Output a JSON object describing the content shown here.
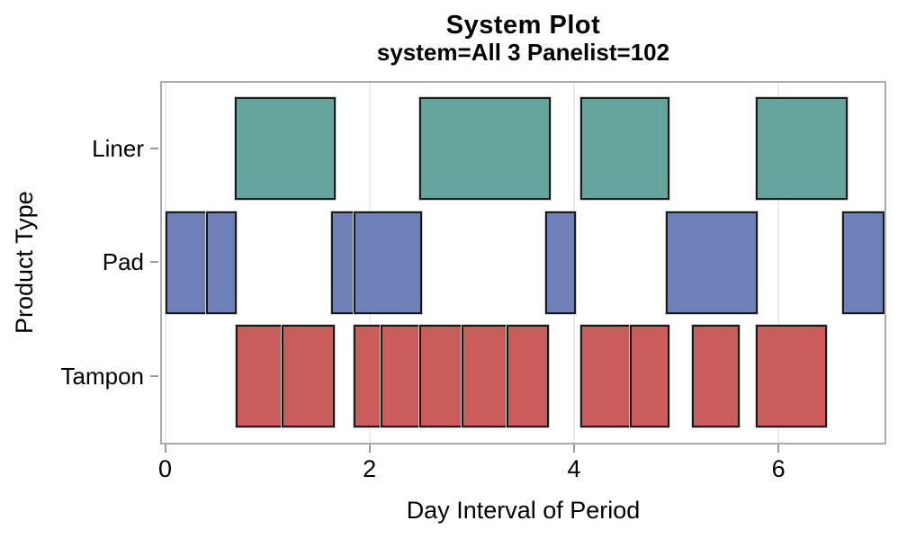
{
  "chart_data": {
    "type": "bar",
    "subtype": "horizontal-interval-gantt",
    "title": "System Plot",
    "subtitle": "system=All 3 Panelist=102",
    "xlabel": "Day Interval of Period",
    "ylabel": "Product Type",
    "categories": [
      "Liner",
      "Pad",
      "Tampon"
    ],
    "x_ticks": [
      0,
      2,
      4,
      6
    ],
    "xlim": [
      -0.05,
      7.06
    ],
    "grid": "vertical-light-at-ticks",
    "legend": "none",
    "series": [
      {
        "name": "Liner",
        "color": "#66A49E",
        "intervals": [
          [
            0.7,
            1.65
          ],
          [
            2.5,
            3.75
          ],
          [
            4.08,
            4.92
          ],
          [
            5.8,
            6.66
          ]
        ]
      },
      {
        "name": "Pad",
        "color": "#6F80B8",
        "intervals": [
          [
            0.02,
            0.42
          ],
          [
            0.42,
            0.68
          ],
          [
            1.64,
            1.86
          ],
          [
            1.86,
            2.5
          ],
          [
            3.74,
            4.0
          ],
          [
            4.92,
            5.78
          ],
          [
            6.64,
            7.02
          ]
        ]
      },
      {
        "name": "Tampon",
        "color": "#CB5C5C",
        "intervals": [
          [
            0.71,
            1.16
          ],
          [
            1.16,
            1.64
          ],
          [
            1.86,
            2.13
          ],
          [
            2.13,
            2.5
          ],
          [
            2.5,
            2.92
          ],
          [
            2.92,
            3.36
          ],
          [
            3.36,
            3.74
          ],
          [
            4.08,
            4.56
          ],
          [
            4.56,
            4.92
          ],
          [
            5.17,
            5.6
          ],
          [
            5.8,
            6.46
          ]
        ]
      }
    ]
  },
  "colors": {
    "frame": "#ababab",
    "grid": "#ececec",
    "tick": "#9a9a9a",
    "bar_border": "#1a1a1a",
    "text": "#000000",
    "background": "#ffffff"
  }
}
